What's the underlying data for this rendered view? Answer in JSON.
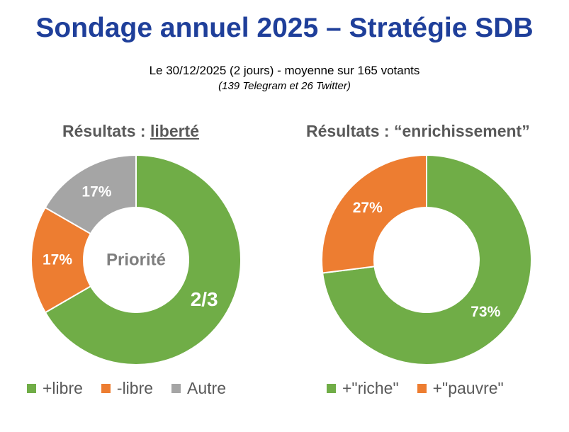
{
  "title": "Sondage annuel 2025 – Stratégie SDB",
  "subtitle": "Le 30/12/2025 (2 jours) - moyenne sur 165 votants",
  "subtitle2": "(139 Telegram et 26 Twitter)",
  "colors": {
    "green": "#70ad47",
    "orange": "#ed7d31",
    "gray": "#a5a5a5"
  },
  "chart_data": [
    {
      "type": "pie",
      "variant": "donut",
      "title_prefix": "Résultats : ",
      "title_word": "liberté",
      "center_label": "Priorité",
      "categories": [
        "+libre",
        "-libre",
        "Autre"
      ],
      "values": [
        66.7,
        16.7,
        16.7
      ],
      "data_labels": [
        "2/3",
        "17%",
        "17%"
      ],
      "colors": [
        "#70ad47",
        "#ed7d31",
        "#a5a5a5"
      ],
      "legend": "bottom"
    },
    {
      "type": "pie",
      "variant": "donut",
      "title": "Résultats : “enrichissement”",
      "categories": [
        "+\"riche\"",
        "+\"pauvre\""
      ],
      "values": [
        73,
        27
      ],
      "data_labels": [
        "73%",
        "27%"
      ],
      "colors": [
        "#70ad47",
        "#ed7d31"
      ],
      "legend": "bottom"
    }
  ]
}
